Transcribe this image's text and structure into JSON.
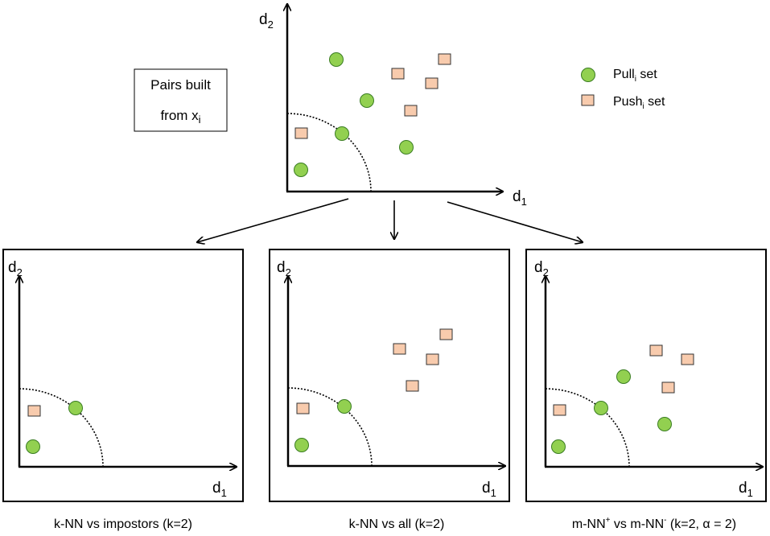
{
  "info_box": {
    "line1": "Pairs built",
    "line2_main": "from x",
    "line2_sub": "i"
  },
  "legend": {
    "pull": {
      "main": "Pull",
      "sub": "i",
      "rest": " set"
    },
    "push": {
      "main": "Push",
      "sub": "i",
      "rest": " set"
    }
  },
  "axes": {
    "x": {
      "main": "d",
      "sub": "1"
    },
    "y": {
      "main": "d",
      "sub": "2"
    }
  },
  "captions": {
    "left": "k-NN vs impostors (k=2)",
    "middle": "k-NN vs all (k=2)",
    "right_part1": "m-NN",
    "right_sup1": "+",
    "right_part2": " vs m-NN",
    "right_sup2": "-",
    "right_part3": " (k=2, α = 2)"
  },
  "colors": {
    "pull_fill": "#92d050",
    "pull_stroke": "#3a7d22",
    "push_fill": "#f8cbad",
    "push_stroke": "#333333",
    "frame": "#000000"
  },
  "icons": {
    "pull_marker": "green-circle-icon",
    "push_marker": "orange-square-icon"
  }
}
